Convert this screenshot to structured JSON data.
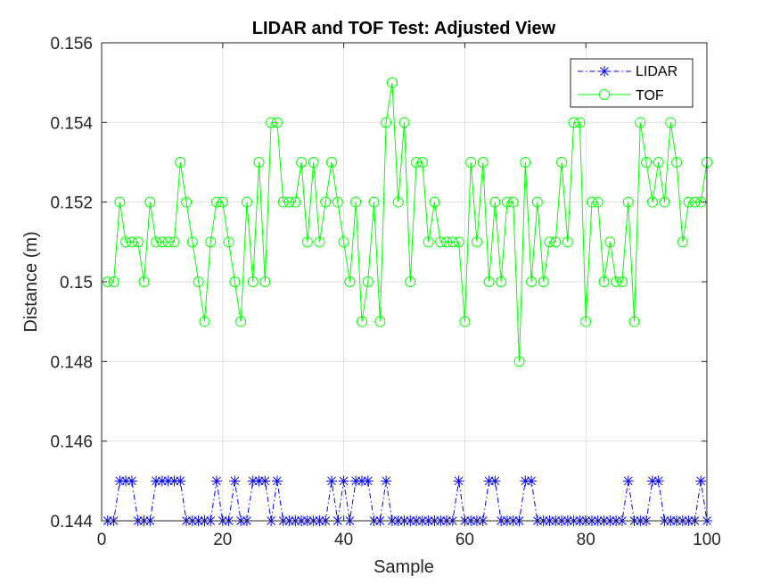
{
  "chart_data": {
    "type": "line",
    "title": "LIDAR and TOF Test: Adjusted View",
    "xlabel": "Sample",
    "ylabel": "Distance (m)",
    "xlim": [
      0,
      100
    ],
    "ylim": [
      0.144,
      0.156
    ],
    "xticks": [
      0,
      20,
      40,
      60,
      80,
      100
    ],
    "xtick_labels": [
      "0",
      "20",
      "40",
      "60",
      "80",
      "100"
    ],
    "yticks": [
      0.144,
      0.146,
      0.148,
      0.15,
      0.152,
      0.154,
      0.156
    ],
    "ytick_labels": [
      "0.144",
      "0.146",
      "0.148",
      "0.15",
      "0.152",
      "0.154",
      "0.156"
    ],
    "grid": true,
    "legend_position": "top-right",
    "x": [
      1,
      2,
      3,
      4,
      5,
      6,
      7,
      8,
      9,
      10,
      11,
      12,
      13,
      14,
      15,
      16,
      17,
      18,
      19,
      20,
      21,
      22,
      23,
      24,
      25,
      26,
      27,
      28,
      29,
      30,
      31,
      32,
      33,
      34,
      35,
      36,
      37,
      38,
      39,
      40,
      41,
      42,
      43,
      44,
      45,
      46,
      47,
      48,
      49,
      50,
      51,
      52,
      53,
      54,
      55,
      56,
      57,
      58,
      59,
      60,
      61,
      62,
      63,
      64,
      65,
      66,
      67,
      68,
      69,
      70,
      71,
      72,
      73,
      74,
      75,
      76,
      77,
      78,
      79,
      80,
      81,
      82,
      83,
      84,
      85,
      86,
      87,
      88,
      89,
      90,
      91,
      92,
      93,
      94,
      95,
      96,
      97,
      98,
      99,
      100
    ],
    "series": [
      {
        "name": "LIDAR",
        "color": "#0000ff",
        "line_style": "dash-dot",
        "marker": "asterisk",
        "values": [
          0.144,
          0.144,
          0.145,
          0.145,
          0.145,
          0.144,
          0.144,
          0.144,
          0.145,
          0.145,
          0.145,
          0.145,
          0.145,
          0.144,
          0.144,
          0.144,
          0.144,
          0.144,
          0.145,
          0.144,
          0.144,
          0.145,
          0.144,
          0.144,
          0.145,
          0.145,
          0.145,
          0.144,
          0.145,
          0.144,
          0.144,
          0.144,
          0.144,
          0.144,
          0.144,
          0.144,
          0.144,
          0.145,
          0.144,
          0.145,
          0.144,
          0.145,
          0.145,
          0.145,
          0.144,
          0.144,
          0.145,
          0.144,
          0.144,
          0.144,
          0.144,
          0.144,
          0.144,
          0.144,
          0.144,
          0.144,
          0.144,
          0.144,
          0.145,
          0.144,
          0.144,
          0.144,
          0.144,
          0.145,
          0.145,
          0.144,
          0.144,
          0.144,
          0.144,
          0.145,
          0.145,
          0.144,
          0.144,
          0.144,
          0.144,
          0.144,
          0.144,
          0.144,
          0.144,
          0.144,
          0.144,
          0.144,
          0.144,
          0.144,
          0.144,
          0.144,
          0.145,
          0.144,
          0.144,
          0.144,
          0.145,
          0.145,
          0.144,
          0.144,
          0.144,
          0.144,
          0.144,
          0.144,
          0.145,
          0.144
        ]
      },
      {
        "name": "TOF",
        "color": "#00ff00",
        "line_style": "solid",
        "marker": "circle",
        "values": [
          0.15,
          0.15,
          0.152,
          0.151,
          0.151,
          0.151,
          0.15,
          0.152,
          0.151,
          0.151,
          0.151,
          0.151,
          0.153,
          0.152,
          0.151,
          0.15,
          0.149,
          0.151,
          0.152,
          0.152,
          0.151,
          0.15,
          0.149,
          0.152,
          0.15,
          0.153,
          0.15,
          0.154,
          0.154,
          0.152,
          0.152,
          0.152,
          0.153,
          0.151,
          0.153,
          0.151,
          0.152,
          0.153,
          0.152,
          0.151,
          0.15,
          0.152,
          0.149,
          0.15,
          0.152,
          0.149,
          0.154,
          0.155,
          0.152,
          0.154,
          0.15,
          0.153,
          0.153,
          0.151,
          0.152,
          0.151,
          0.151,
          0.151,
          0.151,
          0.149,
          0.153,
          0.151,
          0.153,
          0.15,
          0.152,
          0.15,
          0.152,
          0.152,
          0.148,
          0.153,
          0.15,
          0.152,
          0.15,
          0.151,
          0.151,
          0.153,
          0.151,
          0.154,
          0.154,
          0.149,
          0.152,
          0.152,
          0.15,
          0.151,
          0.15,
          0.15,
          0.152,
          0.149,
          0.154,
          0.153,
          0.152,
          0.153,
          0.152,
          0.154,
          0.153,
          0.151,
          0.152,
          0.152,
          0.152,
          0.153
        ]
      }
    ]
  }
}
